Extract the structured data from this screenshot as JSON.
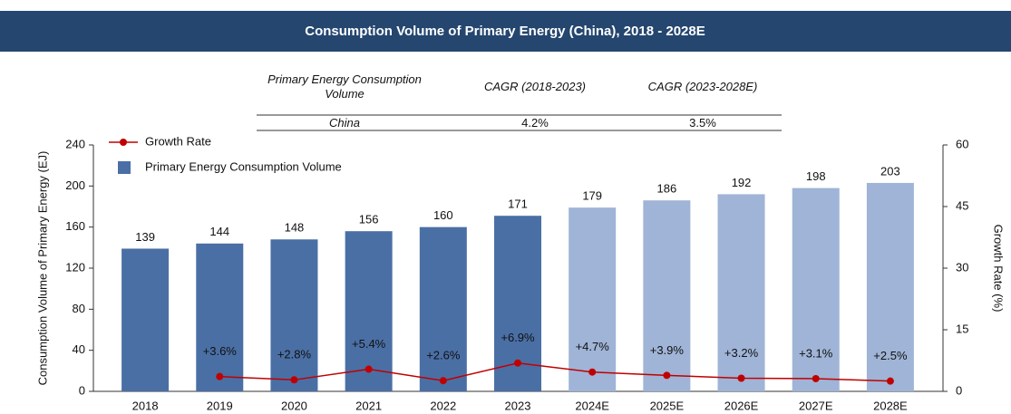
{
  "chart_data": {
    "type": "bar",
    "title": "Consumption Volume of Primary Energy (China), 2018 - 2028E",
    "ylabel": "Consumption Volume of Primary Energy (EJ)",
    "y2label": "Growth Rate (%)",
    "categories": [
      "2018",
      "2019",
      "2020",
      "2021",
      "2022",
      "2023",
      "2024E",
      "2025E",
      "2026E",
      "2027E",
      "2028E"
    ],
    "series": [
      {
        "name": "Growth Rate",
        "type": "line",
        "axis": "y2",
        "color": "#c00000",
        "values": [
          null,
          3.6,
          2.8,
          5.4,
          2.6,
          6.9,
          4.7,
          3.9,
          3.2,
          3.1,
          2.5
        ],
        "value_labels": [
          null,
          "+3.6%",
          "+2.8%",
          "+5.4%",
          "+2.6%",
          "+6.9%",
          "+4.7%",
          "+3.9%",
          "+3.2%",
          "+3.1%",
          "+2.5%"
        ]
      },
      {
        "name": "Primary Energy Consumption Volume",
        "type": "bar",
        "color": "#4a6fa5",
        "colors": [
          "#4a6fa5",
          "#4a6fa5",
          "#4a6fa5",
          "#4a6fa5",
          "#4a6fa5",
          "#4a6fa5",
          "#9fb4d6",
          "#9fb4d6",
          "#9fb4d6",
          "#9fb4d6",
          "#9fb4d6"
        ],
        "values": [
          139,
          144,
          148,
          156,
          160,
          171,
          179,
          186,
          192,
          198,
          203
        ]
      }
    ],
    "ylim": [
      0,
      240
    ],
    "yticks": [
      0,
      40,
      80,
      120,
      160,
      200,
      240
    ],
    "y2lim": [
      0,
      60
    ],
    "y2ticks": [
      0,
      15,
      30,
      45,
      60
    ],
    "table": {
      "columns": [
        "Primary Energy Consumption Volume",
        "CAGR (2018-2023)",
        "CAGR (2023-2028E)"
      ],
      "rows": [
        [
          "China",
          "4.2%",
          "3.5%"
        ]
      ]
    }
  }
}
